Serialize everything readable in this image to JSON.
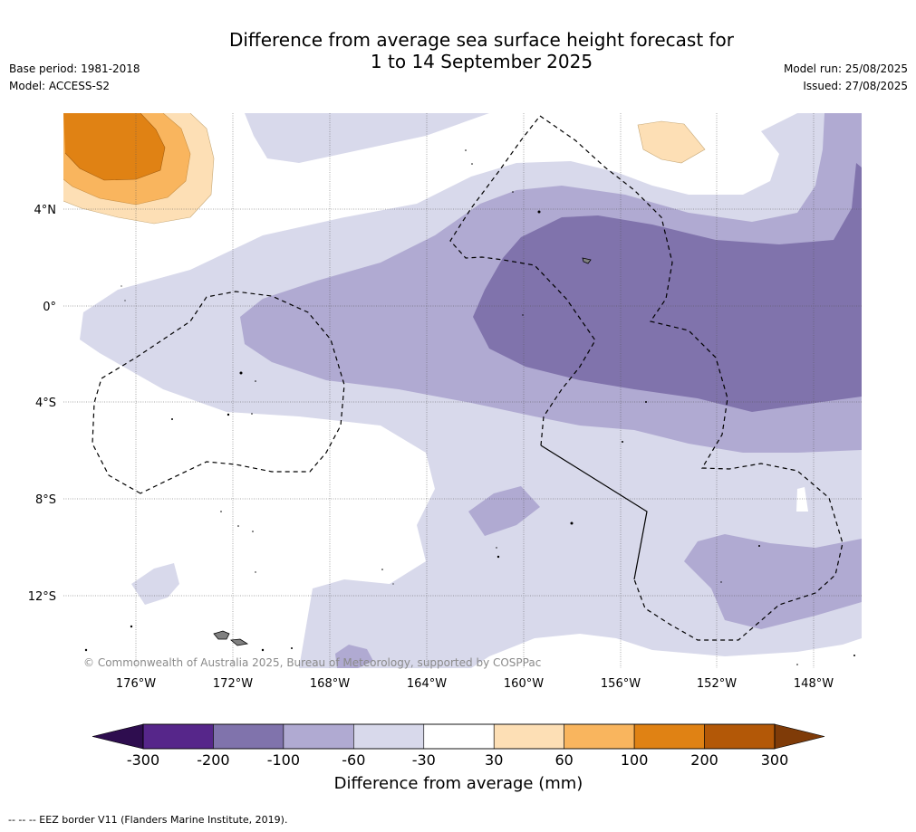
{
  "title_line1": "Difference from average sea surface height forecast for",
  "title_line2": "1 to 14 September 2025",
  "base_period": "Base period: 1981-2018",
  "model": "Model: ACCESS-S2",
  "model_run": "Model run: 25/08/2025",
  "issued": "Issued: 27/08/2025",
  "copyright": "© Commonwealth of Australia 2025, Bureau of Meteorology, supported by COSPPac",
  "lon_labels": [
    "176°W",
    "172°W",
    "168°W",
    "164°W",
    "160°W",
    "156°W",
    "152°W",
    "148°W"
  ],
  "lat_labels": [
    "4°N",
    "0°",
    "4°S",
    "8°S",
    "12°S"
  ],
  "colorbar": {
    "title": "Difference from average (mm)",
    "tick_labels": [
      "-300",
      "-200",
      "-100",
      "-60",
      "-30",
      "30",
      "60",
      "100",
      "200",
      "300"
    ],
    "colors": [
      "#2e0d4f",
      "#56268a",
      "#8073ac",
      "#b0aad2",
      "#d8d9eb",
      "#ffffff",
      "#fddfb5",
      "#f9b55e",
      "#e08214",
      "#b35807",
      "#7f3b08"
    ]
  },
  "footer": "--  --  -- EEZ border V11 (Flanders Marine Institute, 2019)."
}
